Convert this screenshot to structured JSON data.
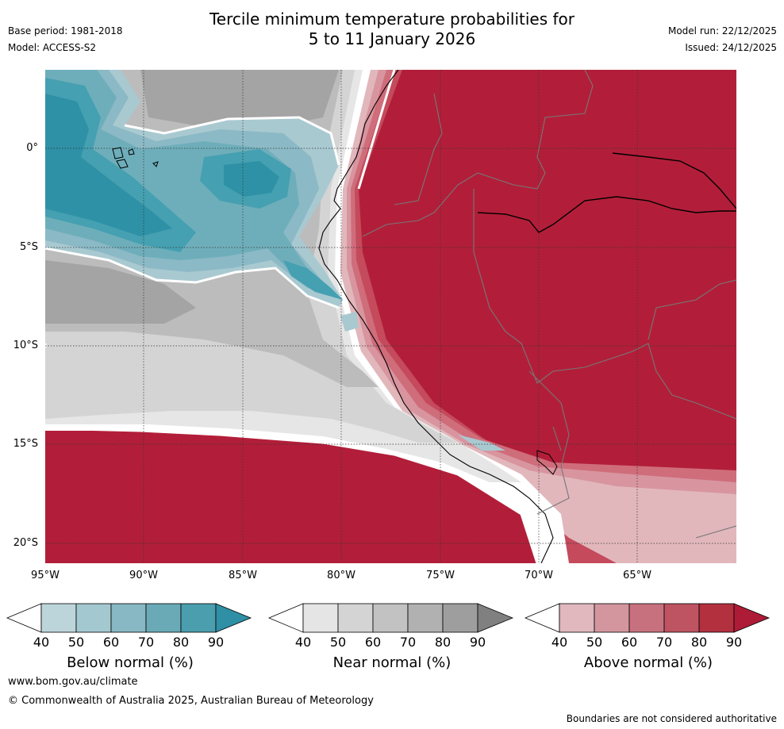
{
  "header": {
    "title_line1": "Tercile minimum temperature probabilities for",
    "title_line2": "5 to 11 January 2026",
    "base_period": "Base period: 1981-2018",
    "model": "Model: ACCESS-S2",
    "model_run": "Model run: 22/12/2025",
    "issued": "Issued: 24/12/2025"
  },
  "map": {
    "lat_labels": [
      "0°",
      "5°S",
      "10°S",
      "15°S",
      "20°S"
    ],
    "lon_labels": [
      "95°W",
      "90°W",
      "85°W",
      "80°W",
      "75°W",
      "70°W",
      "65°W"
    ],
    "colors": {
      "above_90": "#b21e39",
      "above_80": "#c44a5c",
      "above_70": "#cf6d7b",
      "above_60": "#d8959f",
      "above_50": "#e1b7bc",
      "near_40": "#ffffff",
      "near_50": "#e6e6e6",
      "near_60": "#d4d4d4",
      "near_70": "#bcbcbc",
      "near_80": "#a4a4a4",
      "below_50": "#a9c9d1",
      "below_60": "#8bb9c5",
      "below_70": "#6eaeba",
      "below_80": "#45a0b1",
      "below_90": "#2e91a6"
    }
  },
  "legend": {
    "below": {
      "label": "Below normal (%)",
      "ticks": [
        "40",
        "50",
        "60",
        "70",
        "80",
        "90"
      ],
      "colors": [
        "#ffffff",
        "#bcd5db",
        "#a4c8cf",
        "#88b8c3",
        "#6aaab7",
        "#4a9eae",
        "#2e8fa5"
      ]
    },
    "near": {
      "label": "Near normal (%)",
      "ticks": [
        "40",
        "50",
        "60",
        "70",
        "80",
        "90"
      ],
      "colors": [
        "#ffffff",
        "#e5e5e5",
        "#d4d4d4",
        "#c2c2c2",
        "#b1b1b1",
        "#9e9e9e",
        "#808080"
      ]
    },
    "above": {
      "label": "Above normal (%)",
      "ticks": [
        "40",
        "50",
        "60",
        "70",
        "80",
        "90"
      ],
      "colors": [
        "#ffffff",
        "#e0b8be",
        "#d3969f",
        "#c8717e",
        "#be5362",
        "#b3303f",
        "#ad1b37"
      ]
    }
  },
  "footer": {
    "website": "www.bom.gov.au/climate",
    "copyright": "© Commonwealth of Australia 2025, Australian Bureau of Meteorology",
    "disclaimer": "Boundaries are not considered authoritative"
  }
}
